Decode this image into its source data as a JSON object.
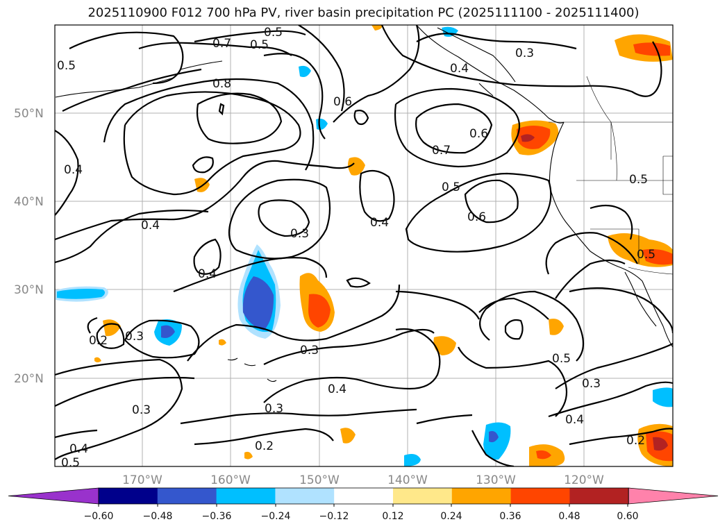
{
  "title": "2025110900 F012 700 hPa PV, river basin precipitation PC (2025111100 - 2025111400)",
  "lat_labels": [
    "50°N",
    "40°N",
    "30°N",
    "20°N"
  ],
  "lon_labels": [
    "170°W",
    "160°W",
    "150°W",
    "140°W",
    "130°W",
    "120°W"
  ],
  "colorbar": {
    "colors": [
      "#9932cc",
      "#00008b",
      "#3457cd",
      "#00bfff",
      "#b0e2ff",
      "#ffffff",
      "#ffe88a",
      "#ffa500",
      "#ff4500",
      "#b22222",
      "#ff82ab"
    ],
    "tick_labels": [
      "−0.60",
      "−0.48",
      "−0.36",
      "−0.24",
      "−0.12",
      "0.12",
      "0.24",
      "0.36",
      "0.48",
      "0.60"
    ]
  },
  "contour_labels": [
    "0.5",
    "0.7",
    "0.5",
    "0.5",
    "0.8",
    "0.6",
    "0.3",
    "0.4",
    "0.7",
    "0.6",
    "0.4",
    "0.5",
    "0.4",
    "0.3",
    "0.4",
    "0.6",
    "0.5",
    "0.4",
    "0.5",
    "0.2",
    "0.3",
    "0.3",
    "0.4",
    "0.5",
    "0.3",
    "0.3",
    "0.3",
    "0.4",
    "0.2",
    "0.4",
    "0.5",
    "0.2"
  ]
}
